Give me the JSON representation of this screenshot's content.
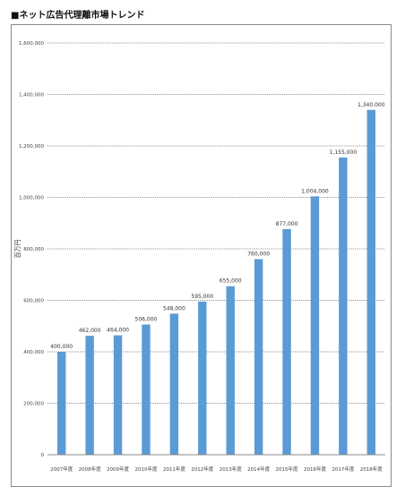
{
  "page_title": "■ネット広告代理離市場トレンド",
  "chart_data": {
    "type": "bar",
    "title": "",
    "xlabel": "",
    "ylabel": "百万円",
    "ylim": [
      0,
      1600000
    ],
    "yticks": [
      0,
      200000,
      400000,
      600000,
      800000,
      1000000,
      1200000,
      1400000,
      1600000
    ],
    "ytick_labels": [
      "0",
      "200,000",
      "400,000",
      "600,000",
      "800,000",
      "1,000,000",
      "1,200,000",
      "1,400,000",
      "1,600,000"
    ],
    "categories": [
      "2007年度",
      "2008年度",
      "2009年度",
      "2010年度",
      "2011年度",
      "2012年度",
      "2013年度",
      "2014年度",
      "2015年度",
      "2016年度",
      "2017年度",
      "2018年度"
    ],
    "values": [
      400000,
      462000,
      464000,
      506000,
      548000,
      595000,
      655000,
      760000,
      877000,
      1004000,
      1155000,
      1340000
    ],
    "value_labels": [
      "400,000",
      "462,000",
      "464,000",
      "506,000",
      "548,000",
      "595,000",
      "655,000",
      "760,000",
      "877,000",
      "1,004,000",
      "1,155,000",
      "1,340,000"
    ],
    "grid": true,
    "legend": "none",
    "bar_color": "#5b9bd5",
    "grid_color": "#222222"
  }
}
